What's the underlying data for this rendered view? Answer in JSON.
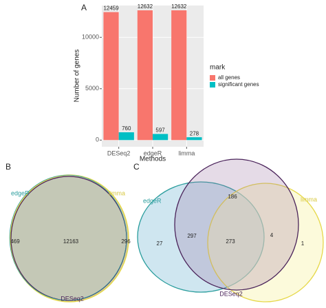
{
  "chart_data": {
    "type": "bar",
    "panel": "A",
    "categories": [
      "DESeq2",
      "edgeR",
      "limma"
    ],
    "series": [
      {
        "name": "all genes",
        "color": "#F8766D",
        "values": [
          12459,
          12632,
          12632
        ]
      },
      {
        "name": "significant genes",
        "color": "#00BFC4",
        "values": [
          760,
          597,
          278
        ]
      }
    ],
    "xlabel": "Methods",
    "ylabel": "Number of genes",
    "legend_title": "mark",
    "ylim": [
      -650,
      13100
    ],
    "yticks": [
      0,
      5000,
      10000
    ],
    "grid": true,
    "legend": "right"
  },
  "venn_b": {
    "label": "B",
    "sets": [
      "edgeR",
      "limma",
      "DESeq2"
    ],
    "regions": [
      469,
      12163,
      296
    ]
  },
  "venn_c": {
    "label": "C",
    "sets": [
      "edgeR",
      "limma",
      "DESeq2"
    ],
    "regions": [
      27,
      297,
      186,
      273,
      4,
      1
    ]
  }
}
